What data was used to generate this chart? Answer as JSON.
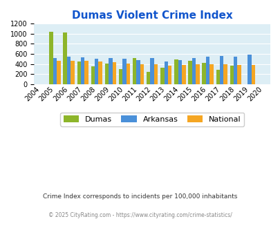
{
  "title": "Dumas Violent Crime Index",
  "all_years": [
    2004,
    2005,
    2006,
    2007,
    2008,
    2009,
    2010,
    2011,
    2012,
    2013,
    2014,
    2015,
    2016,
    2017,
    2018,
    2019,
    2020
  ],
  "data_years": [
    2005,
    2006,
    2007,
    2008,
    2009,
    2010,
    2011,
    2012,
    2013,
    2014,
    2015,
    2016,
    2017,
    2018,
    2019
  ],
  "dumas": [
    1035,
    1020,
    455,
    350,
    405,
    300,
    520,
    250,
    335,
    490,
    470,
    425,
    285,
    375,
    0
  ],
  "arkansas": [
    525,
    545,
    530,
    500,
    515,
    500,
    480,
    515,
    450,
    480,
    525,
    550,
    555,
    540,
    590
  ],
  "national": [
    470,
    470,
    465,
    455,
    435,
    405,
    395,
    390,
    375,
    380,
    395,
    400,
    395,
    380,
    380
  ],
  "dumas_color": "#8db52a",
  "arkansas_color": "#4a90d9",
  "national_color": "#f5a623",
  "bg_color": "#ddeef5",
  "title_color": "#1155cc",
  "ylim": [
    0,
    1200
  ],
  "yticks": [
    0,
    200,
    400,
    600,
    800,
    1000,
    1200
  ],
  "footnote1": "Crime Index corresponds to incidents per 100,000 inhabitants",
  "footnote2": "© 2025 CityRating.com - https://www.cityrating.com/crime-statistics/",
  "bar_width": 0.27,
  "legend_labels": [
    "Dumas",
    "Arkansas",
    "National"
  ]
}
